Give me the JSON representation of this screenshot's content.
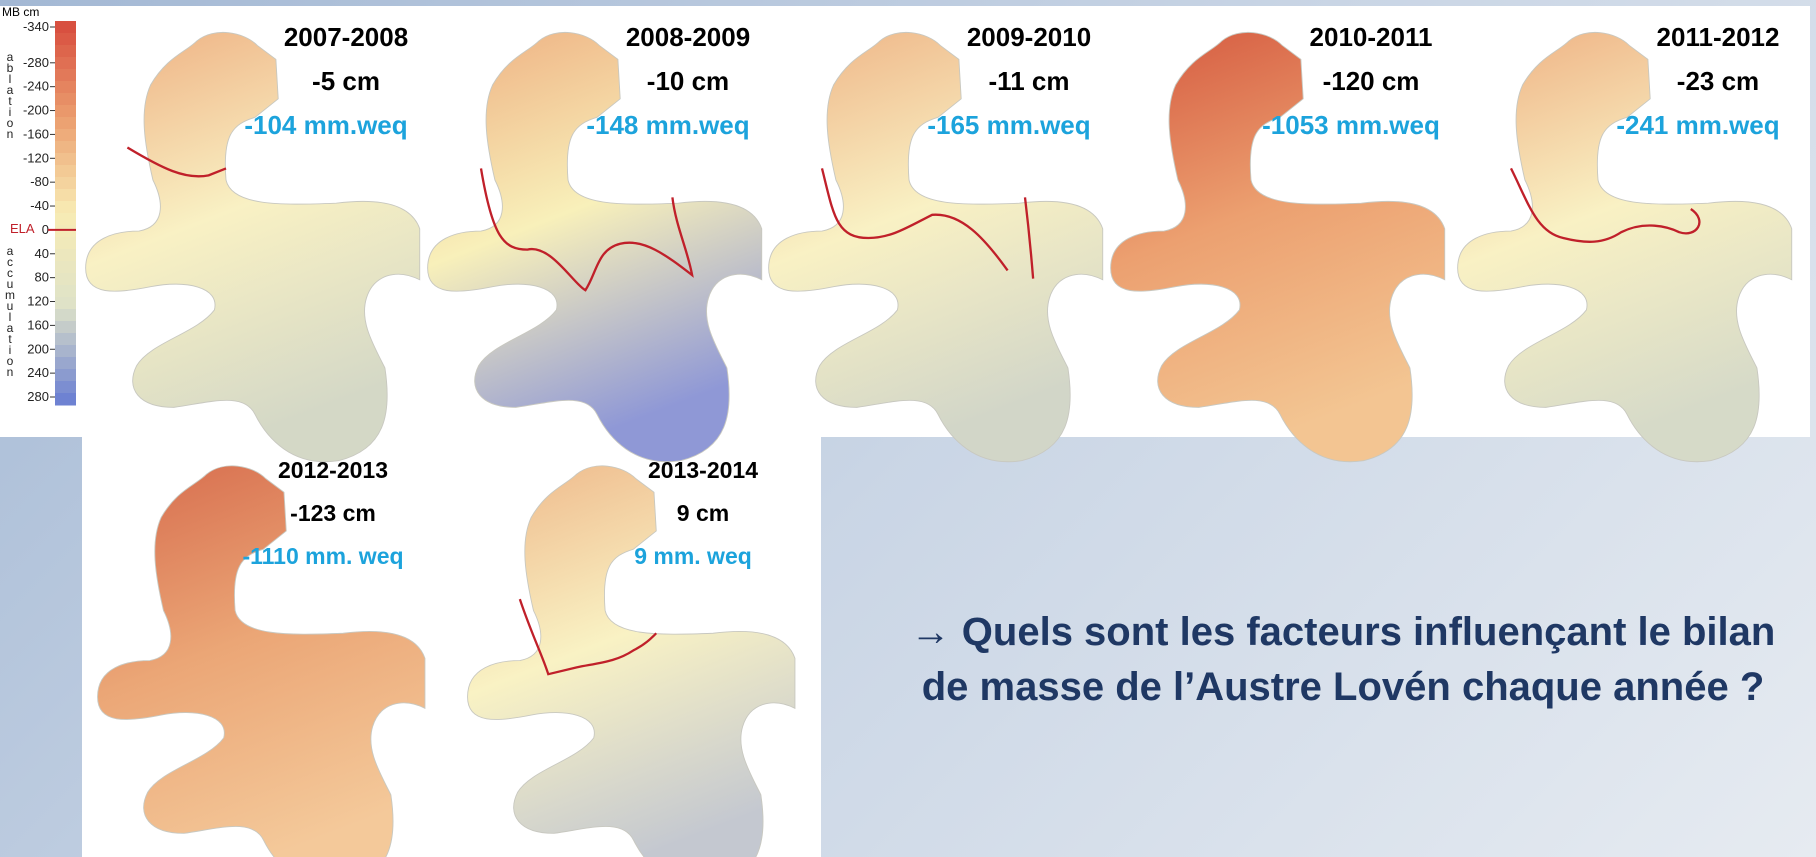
{
  "legend": {
    "unit": "MB cm",
    "ablation": "ablation",
    "accumulation": "accumulation",
    "ela": "ELA",
    "ticks": [
      -340,
      -280,
      -240,
      -200,
      -160,
      -120,
      -80,
      -40,
      0,
      40,
      80,
      120,
      160,
      200,
      240,
      280
    ]
  },
  "panels": [
    {
      "years": "2007-2008",
      "cm": "-5 cm",
      "weq": "-104 mm.weq"
    },
    {
      "years": "2008-2009",
      "cm": "-10 cm",
      "weq": "-148 mm.weq"
    },
    {
      "years": "2009-2010",
      "cm": "-11 cm",
      "weq": "-165 mm.weq"
    },
    {
      "years": "2010-2011",
      "cm": "-120 cm",
      "weq": "-1053 mm.weq"
    },
    {
      "years": "2011-2012",
      "cm": "-23 cm",
      "weq": "-241 mm.weq"
    },
    {
      "years": "2012-2013",
      "cm": "-123 cm",
      "weq": "-1110 mm. weq"
    },
    {
      "years": "2013-2014",
      "cm": "9 cm",
      "weq": "9 mm. weq"
    }
  ],
  "question": [
    "→ Quels sont les facteurs influençant le bilan",
    "de masse de l’Austre Lovén chaque année ?"
  ]
}
